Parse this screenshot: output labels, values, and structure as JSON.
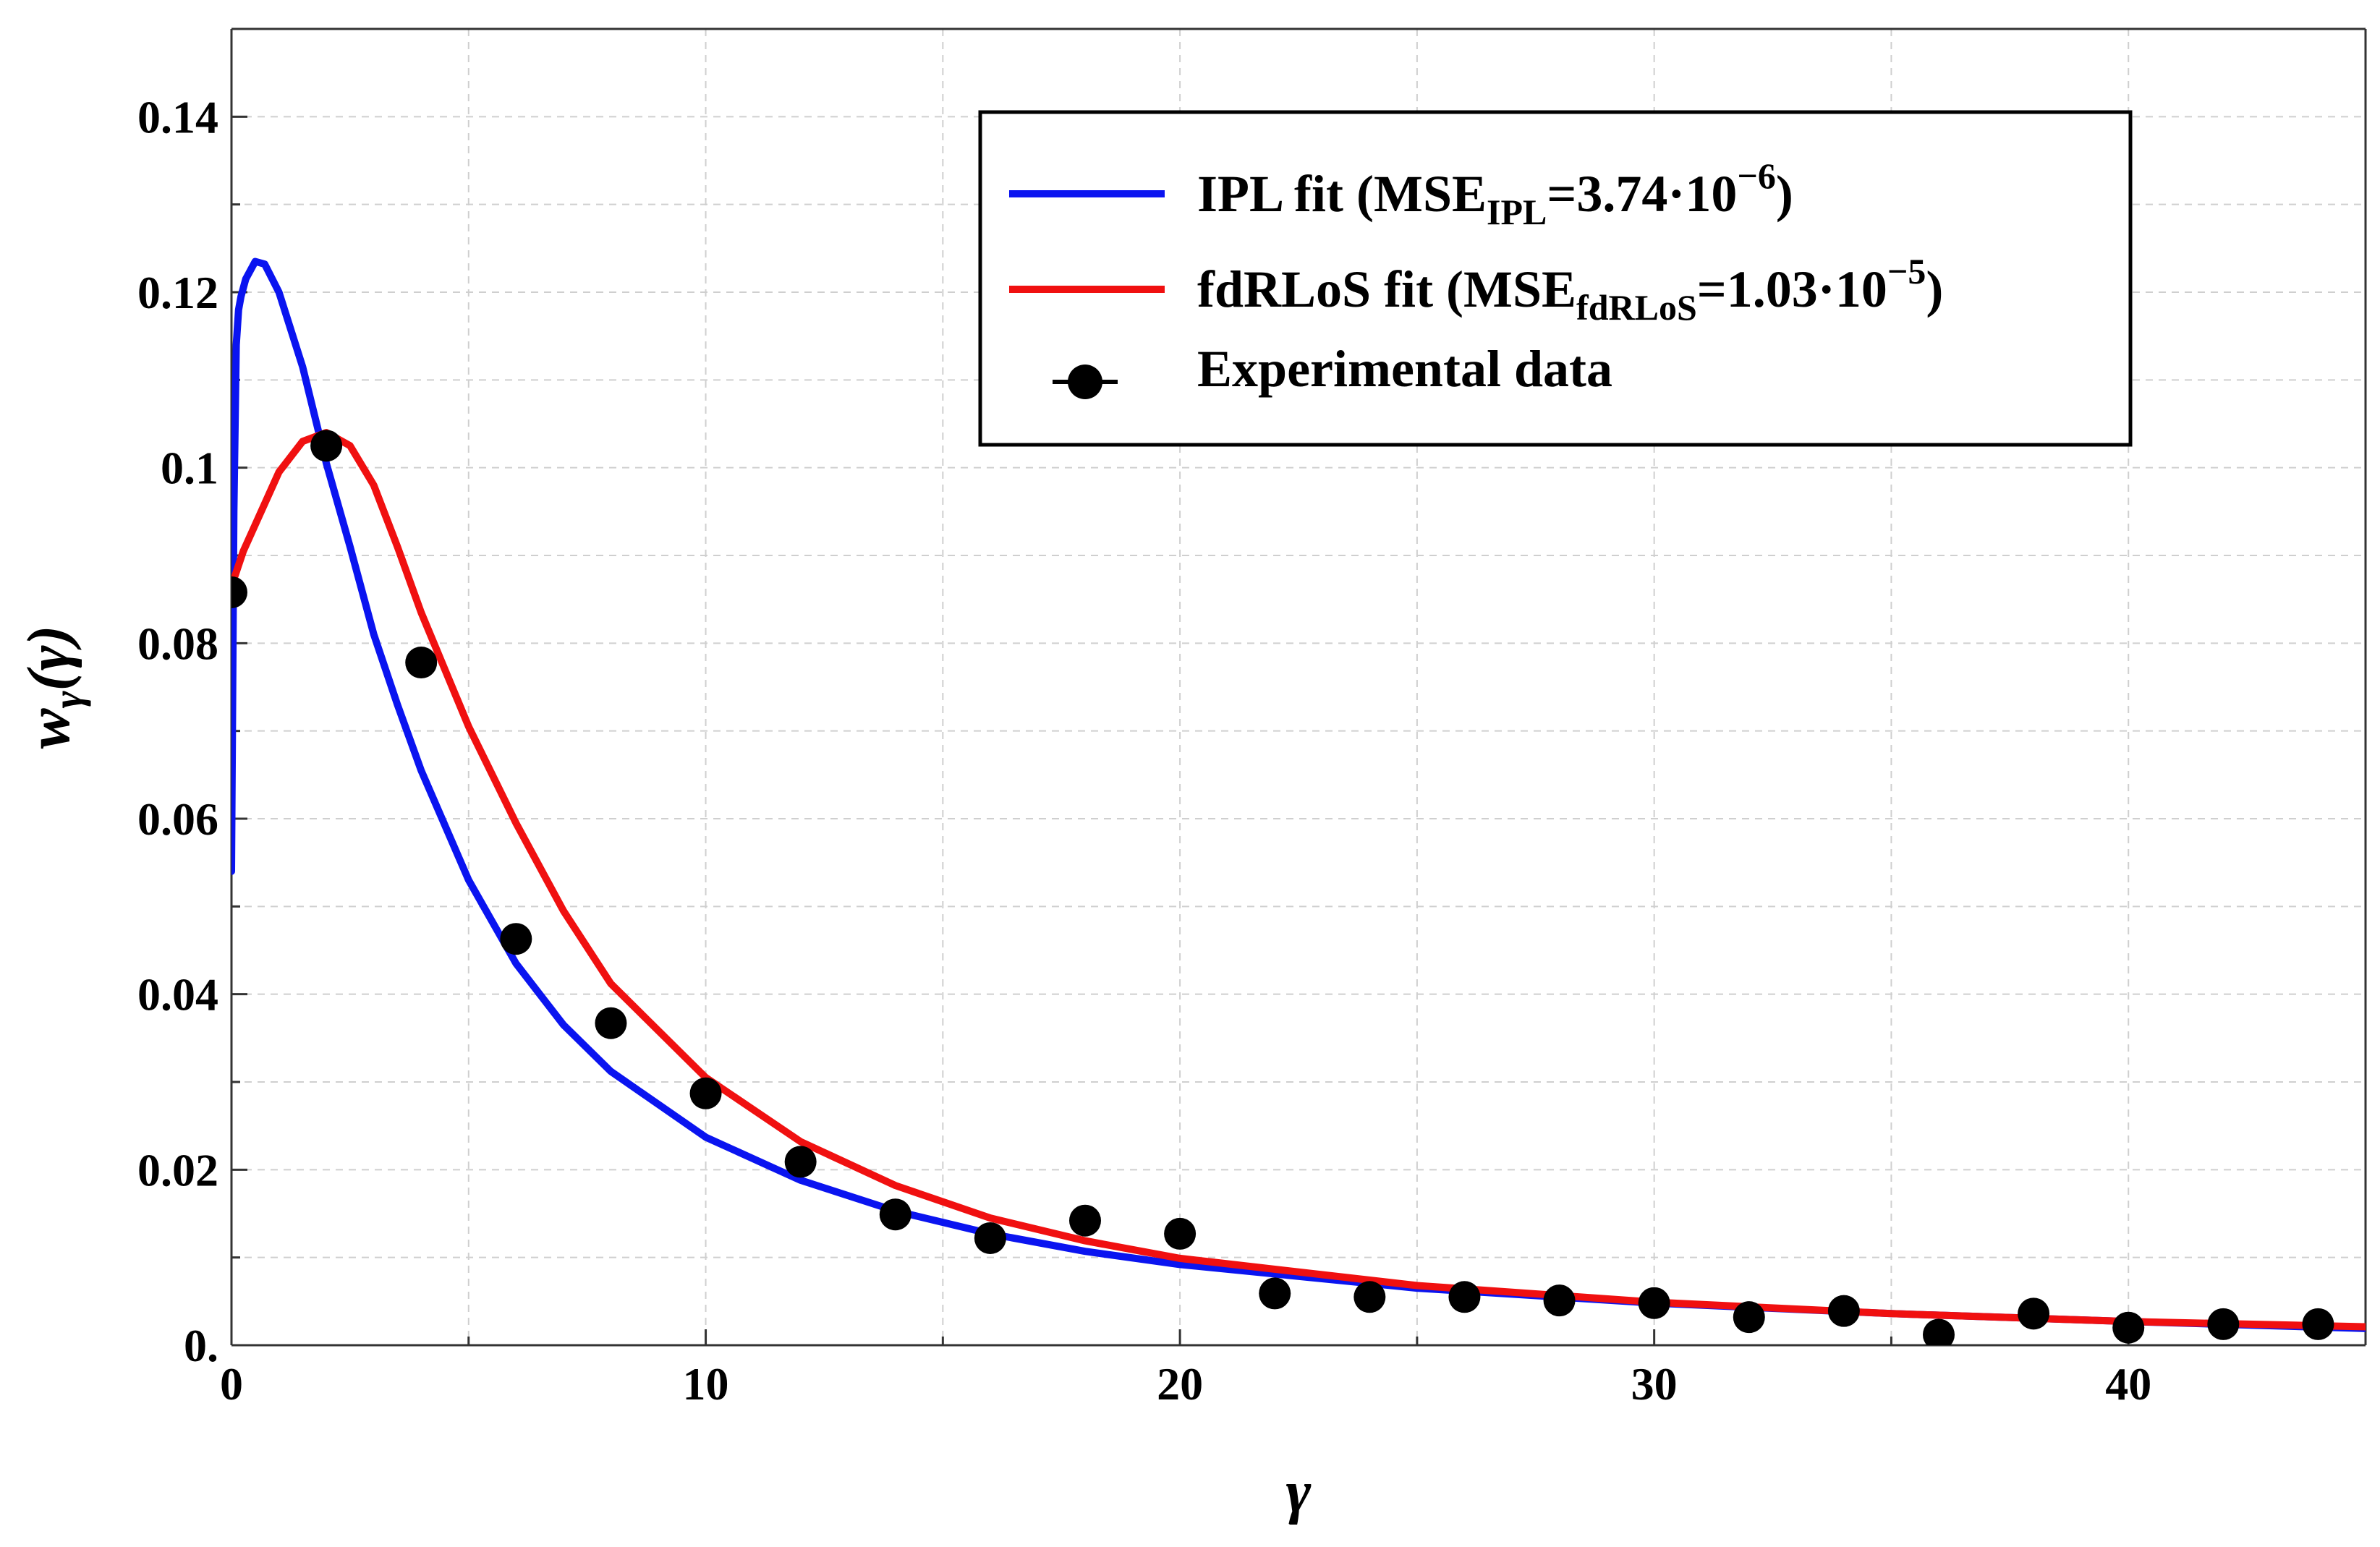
{
  "chart_data": {
    "type": "line",
    "xlabel": "γ",
    "ylabel": {
      "main": "w",
      "sub": "γ",
      "arg": "(γ)"
    },
    "xlim": [
      0,
      45
    ],
    "ylim": [
      0,
      0.15
    ],
    "x_ticks": [
      0,
      10,
      20,
      30,
      40
    ],
    "x_tick_labels": [
      "0",
      "10",
      "20",
      "30",
      "40"
    ],
    "y_ticks": [
      0,
      0.02,
      0.04,
      0.06,
      0.08,
      0.1,
      0.12,
      0.14
    ],
    "y_tick_labels": [
      "0.",
      "0.02",
      "0.04",
      "0.06",
      "0.08",
      "0.1",
      "0.12",
      "0.14"
    ],
    "x_grid": [
      5,
      10,
      15,
      20,
      25,
      30,
      35,
      40
    ],
    "y_grid": [
      0.01,
      0.02,
      0.03,
      0.04,
      0.05,
      0.06,
      0.07,
      0.08,
      0.09,
      0.1,
      0.11,
      0.12,
      0.13,
      0.14
    ],
    "grid": true,
    "legend_position": "top-right",
    "legend": [
      {
        "name": "IPL fit",
        "mse_prefix": "(MSE",
        "mse_sub": "IPL",
        "mse_value": "=3.74·10",
        "mse_exp": "−6",
        "mse_suffix": ")",
        "color": "#0a14f0"
      },
      {
        "name": "fdRLoS fit",
        "mse_prefix": "(MSE",
        "mse_sub": "fdRLoS",
        "mse_value": "=1.03·10",
        "mse_exp": "−5",
        "mse_suffix": ")",
        "color": "#f01010"
      },
      {
        "name": "Experimental data",
        "color": "#000000"
      }
    ],
    "series": [
      {
        "name": "IPL fit",
        "color": "#0a14f0",
        "x": [
          0,
          0.05,
          0.1,
          0.15,
          0.2,
          0.3,
          0.5,
          0.7,
          1,
          1.5,
          2,
          2.5,
          3,
          3.5,
          4,
          5,
          6,
          7,
          8,
          10,
          12,
          14,
          16,
          18,
          20,
          25,
          30,
          35,
          40,
          45
        ],
        "y": [
          0.054,
          0.095,
          0.114,
          0.118,
          0.1195,
          0.1215,
          0.1235,
          0.1232,
          0.12,
          0.1115,
          0.1005,
          0.091,
          0.081,
          0.073,
          0.0655,
          0.053,
          0.0435,
          0.0365,
          0.0312,
          0.0237,
          0.0188,
          0.0153,
          0.0127,
          0.0107,
          0.0092,
          0.0065,
          0.0048,
          0.0036,
          0.0027,
          0.0019
        ]
      },
      {
        "name": "fdRLoS fit",
        "color": "#f01010",
        "x": [
          0,
          0.25,
          0.5,
          1,
          1.5,
          2,
          2.5,
          3,
          3.5,
          4,
          5,
          6,
          7,
          8,
          10,
          12,
          14,
          16,
          18,
          20,
          25,
          30,
          35,
          40,
          45
        ],
        "y": [
          0.0865,
          0.0905,
          0.0935,
          0.0995,
          0.103,
          0.104,
          0.1025,
          0.098,
          0.091,
          0.0835,
          0.0705,
          0.0595,
          0.0495,
          0.0412,
          0.0305,
          0.0232,
          0.0182,
          0.0145,
          0.0119,
          0.0099,
          0.0068,
          0.0049,
          0.0036,
          0.0027,
          0.0021
        ]
      },
      {
        "name": "Experimental data",
        "color": "#000000",
        "marker": "circle",
        "x": [
          0,
          2,
          4,
          6,
          8,
          10,
          12,
          14,
          16,
          18,
          20,
          22,
          24,
          26,
          28,
          30,
          32,
          34,
          36,
          38,
          40,
          42,
          44
        ],
        "y": [
          0.0858,
          0.1025,
          0.0778,
          0.0463,
          0.0367,
          0.0287,
          0.0209,
          0.0149,
          0.0122,
          0.0142,
          0.0127,
          0.0059,
          0.0055,
          0.0055,
          0.0051,
          0.0048,
          0.0032,
          0.0039,
          0.0012,
          0.0036,
          0.002,
          0.0024,
          0.0024
        ]
      }
    ]
  }
}
